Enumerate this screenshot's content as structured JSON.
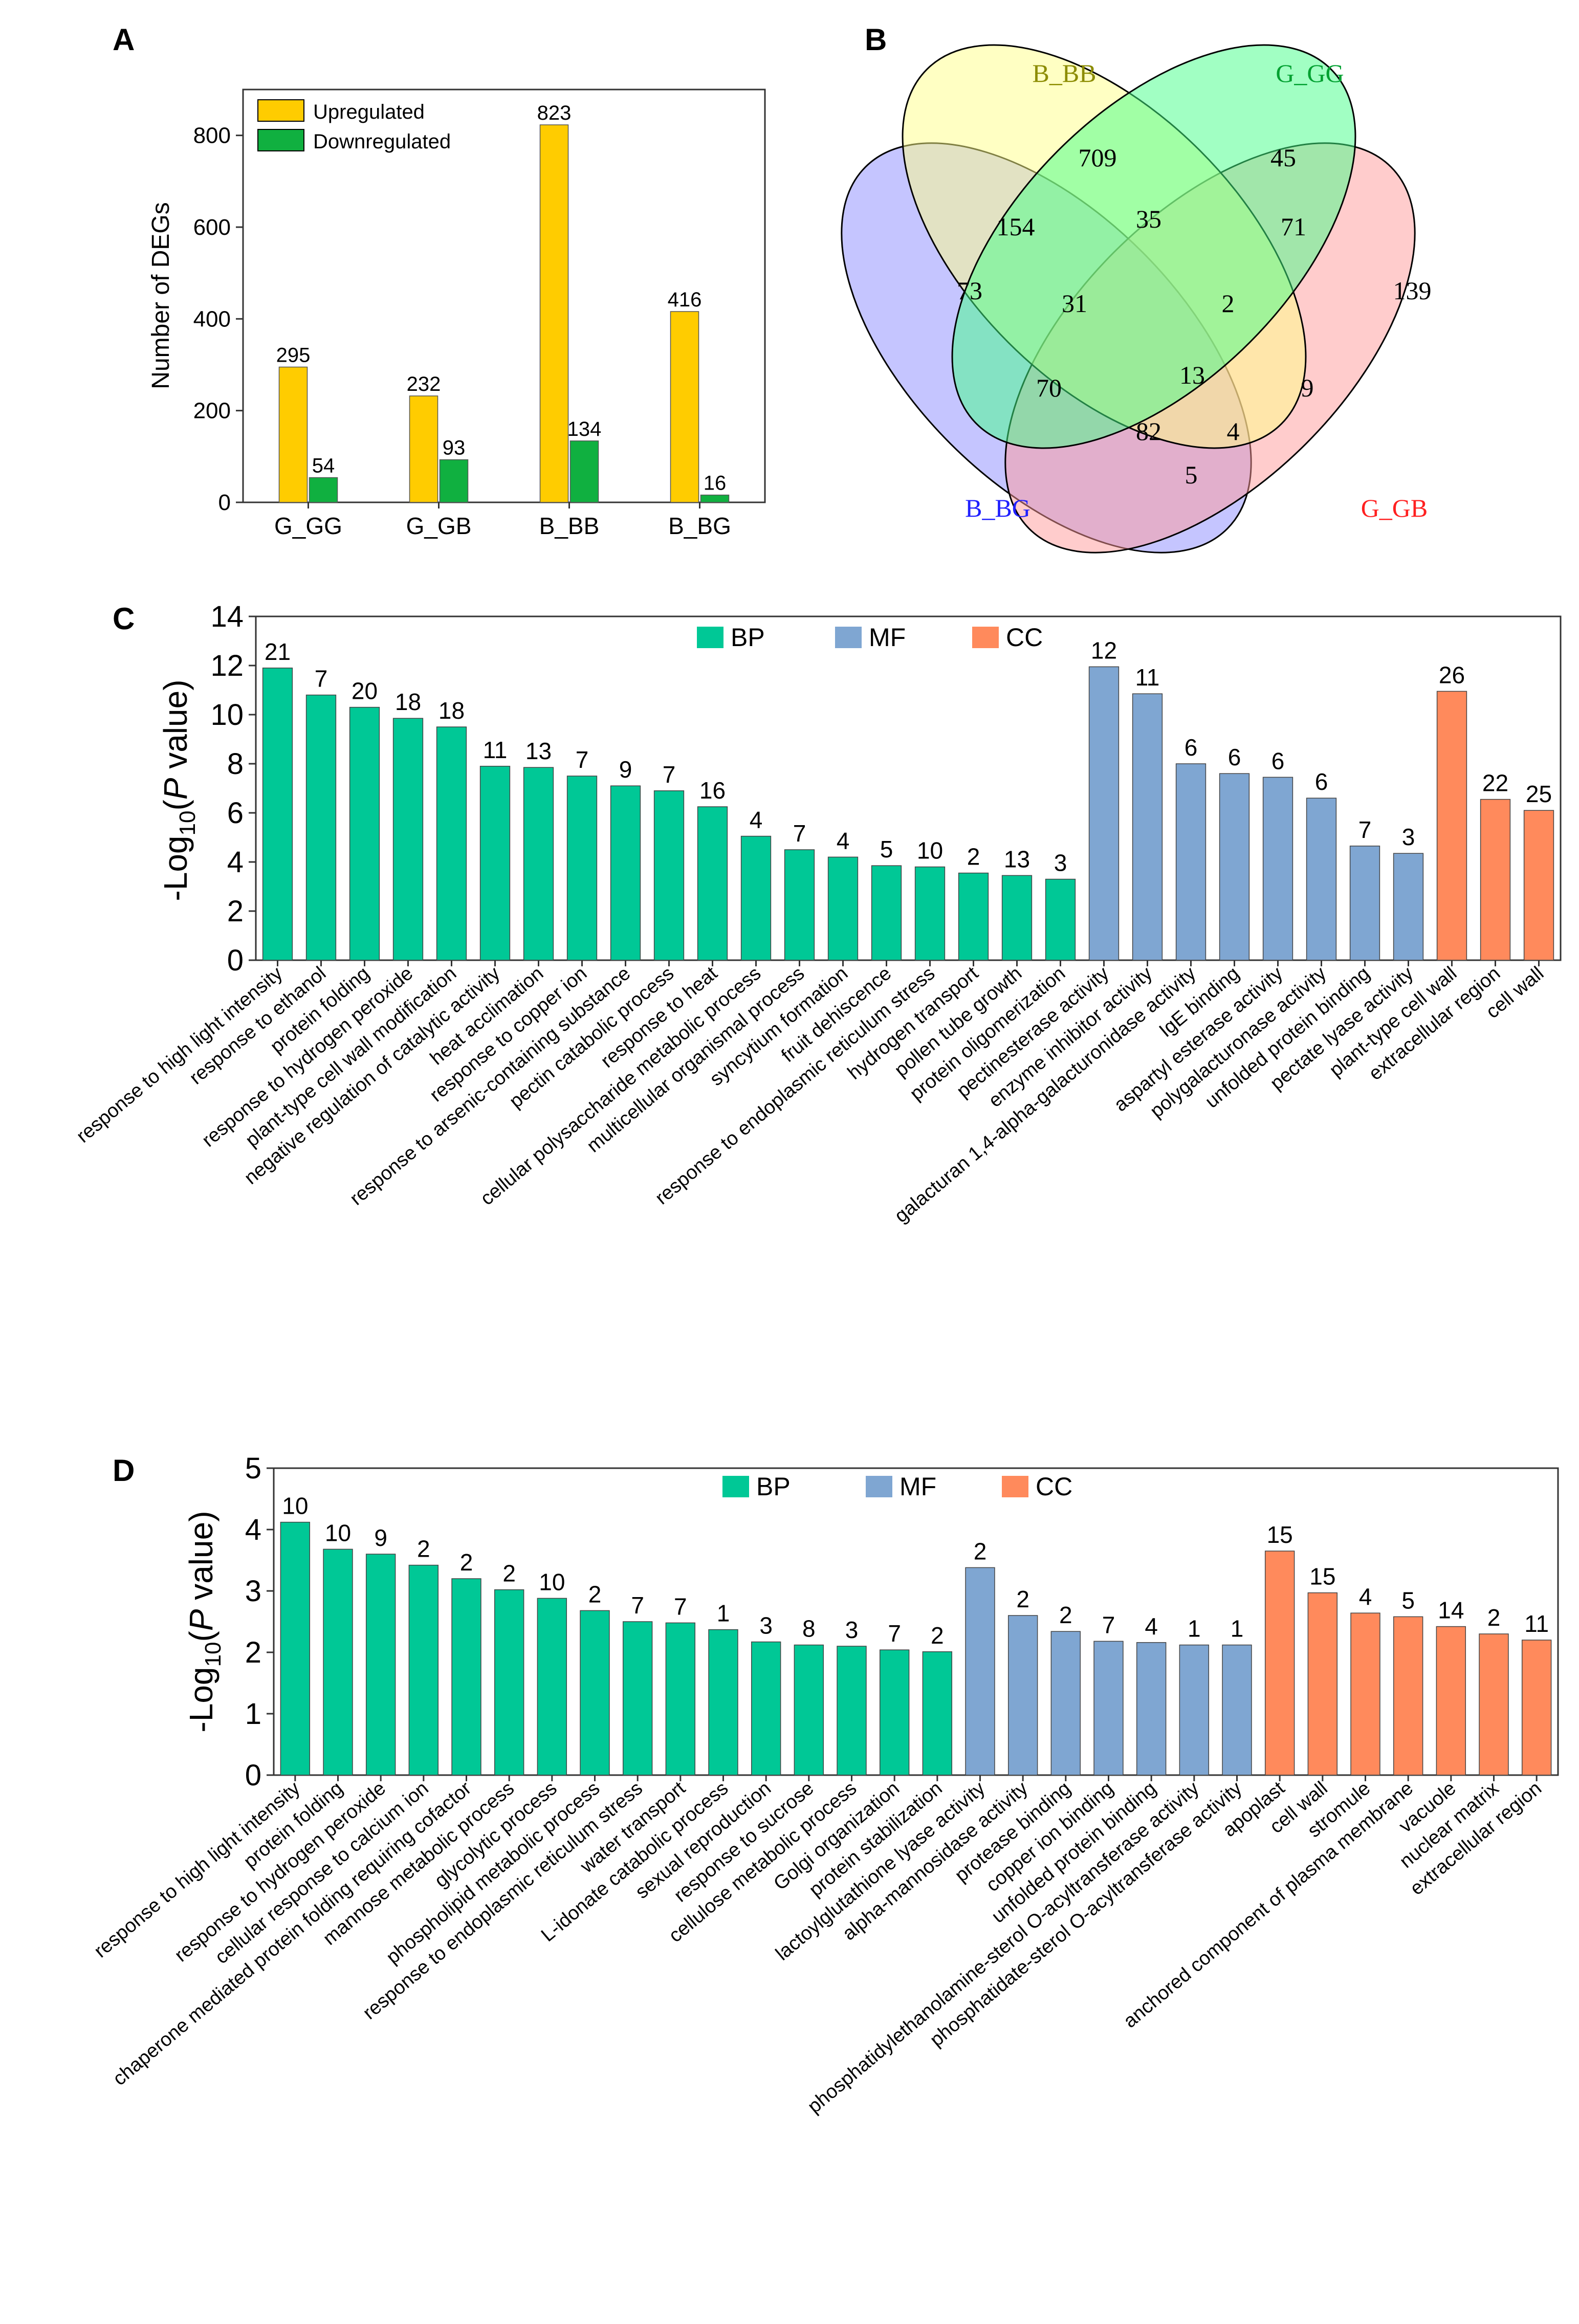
{
  "colors": {
    "up": "#FFCC00",
    "down": "#10B040",
    "bp": "#00C896",
    "mf": "#7FA6D2",
    "cc": "#FF8A5C",
    "venn_bb": "#FFFF88",
    "venn_gg": "#44FF88",
    "venn_gb": "#FF9A9A",
    "venn_bg": "#8C8CFF",
    "venn_bb_label": "#8C8C00",
    "venn_gg_label": "#00A030",
    "venn_gb_label": "#FF2020",
    "venn_bg_label": "#2020FF"
  },
  "chart_data": [
    {
      "panel": "A",
      "type": "bar",
      "categories": [
        "G_GG",
        "G_GB",
        "B_BB",
        "B_BG"
      ],
      "series": [
        {
          "name": "Upregulated",
          "values": [
            295,
            232,
            823,
            416
          ]
        },
        {
          "name": "Downregulated",
          "values": [
            54,
            93,
            134,
            16
          ]
        }
      ],
      "ylabel": "Number of DEGs",
      "ylim": [
        0,
        900
      ],
      "yticks": [
        0,
        200,
        400,
        600,
        800
      ],
      "legend": "top-left"
    },
    {
      "panel": "B",
      "type": "venn",
      "sets": [
        "B_BB",
        "G_GG",
        "B_BG",
        "G_GB"
      ],
      "regions": [
        {
          "sets": [
            "B_BB"
          ],
          "value": 709
        },
        {
          "sets": [
            "G_GG"
          ],
          "value": 45
        },
        {
          "sets": [
            "B_BG"
          ],
          "value": 73
        },
        {
          "sets": [
            "G_GB"
          ],
          "value": 139
        },
        {
          "sets": [
            "B_BB",
            "B_BG"
          ],
          "value": 154
        },
        {
          "sets": [
            "B_BB",
            "G_GG"
          ],
          "value": 35
        },
        {
          "sets": [
            "G_GG",
            "G_GB"
          ],
          "value": 71
        },
        {
          "sets": [
            "B_BB",
            "G_GG",
            "B_BG"
          ],
          "value": 31
        },
        {
          "sets": [
            "B_BB",
            "G_GG",
            "G_GB"
          ],
          "value": 2
        },
        {
          "sets": [
            "G_GG",
            "B_BG"
          ],
          "value": 70
        },
        {
          "sets": [
            "B_BB",
            "G_GB"
          ],
          "value": 9
        },
        {
          "sets": [
            "B_BB",
            "G_GG",
            "B_BG",
            "G_GB"
          ],
          "value": 13
        },
        {
          "sets": [
            "G_GG",
            "B_BG",
            "G_GB"
          ],
          "value": 82
        },
        {
          "sets": [
            "B_BB",
            "B_BG",
            "G_GB"
          ],
          "value": 4
        },
        {
          "sets": [
            "B_BG",
            "G_GB"
          ],
          "value": 5
        }
      ]
    },
    {
      "panel": "C",
      "type": "bar",
      "ylabel_parts": [
        "-Log",
        "10",
        "(",
        "P",
        " value)"
      ],
      "ylim": [
        0,
        14
      ],
      "yticks": [
        0,
        2,
        4,
        6,
        8,
        10,
        12,
        14
      ],
      "legend": [
        "BP",
        "MF",
        "CC"
      ],
      "bars": [
        {
          "label": "response to high light intensity",
          "value": 11.9,
          "count": "21",
          "group": "BP"
        },
        {
          "label": "response to ethanol",
          "value": 10.8,
          "count": "7",
          "group": "BP"
        },
        {
          "label": "protein folding",
          "value": 10.3,
          "count": "20",
          "group": "BP"
        },
        {
          "label": "response to hydrogen peroxide",
          "value": 9.85,
          "count": "18",
          "group": "BP"
        },
        {
          "label": "plant-type cell wall modification",
          "value": 9.5,
          "count": "18",
          "group": "BP"
        },
        {
          "label": "negative regulation of catalytic activity",
          "value": 7.9,
          "count": "11",
          "group": "BP"
        },
        {
          "label": "heat acclimation",
          "value": 7.85,
          "count": "13",
          "group": "BP"
        },
        {
          "label": "response to copper ion",
          "value": 7.5,
          "count": "7",
          "group": "BP"
        },
        {
          "label": "response to arsenic-containing substance",
          "value": 7.1,
          "count": "9",
          "group": "BP"
        },
        {
          "label": "pectin catabolic process",
          "value": 6.9,
          "count": "7",
          "group": "BP"
        },
        {
          "label": "response to heat",
          "value": 6.25,
          "count": "16",
          "group": "BP"
        },
        {
          "label": "cellular polysaccharide metabolic process",
          "value": 5.05,
          "count": "4",
          "group": "BP"
        },
        {
          "label": "multicellular organismal process",
          "value": 4.5,
          "count": "7",
          "group": "BP"
        },
        {
          "label": "syncytium formation",
          "value": 4.2,
          "count": "4",
          "group": "BP"
        },
        {
          "label": "fruit dehiscence",
          "value": 3.85,
          "count": "5",
          "group": "BP"
        },
        {
          "label": "response to endoplasmic reticulum stress",
          "value": 3.8,
          "count": "10",
          "group": "BP"
        },
        {
          "label": "hydrogen transport",
          "value": 3.55,
          "count": "2",
          "group": "BP"
        },
        {
          "label": "pollen tube growth",
          "value": 3.45,
          "count": "13",
          "group": "BP"
        },
        {
          "label": "protein oligomerization",
          "value": 3.3,
          "count": "3",
          "group": "BP"
        },
        {
          "label": "pectinesterase activity",
          "value": 11.95,
          "count": "12",
          "group": "MF"
        },
        {
          "label": "enzyme inhibitor activity",
          "value": 10.85,
          "count": "11",
          "group": "MF"
        },
        {
          "label": "galacturan 1,4-alpha-galacturonidase activity",
          "value": 8.0,
          "count": "6",
          "group": "MF"
        },
        {
          "label": "IgE binding",
          "value": 7.6,
          "count": "6",
          "group": "MF"
        },
        {
          "label": "aspartyl esterase activity",
          "value": 7.45,
          "count": "6",
          "group": "MF"
        },
        {
          "label": "polygalacturonase activity",
          "value": 6.6,
          "count": "6",
          "group": "MF"
        },
        {
          "label": "unfolded protein binding",
          "value": 4.65,
          "count": "7",
          "group": "MF"
        },
        {
          "label": "pectate lyase activity",
          "value": 4.35,
          "count": "3",
          "group": "MF"
        },
        {
          "label": "plant-type cell wall",
          "value": 10.95,
          "count": "26",
          "group": "CC"
        },
        {
          "label": "extracellular region",
          "value": 6.55,
          "count": "22",
          "group": "CC"
        },
        {
          "label": "cell wall",
          "value": 6.1,
          "count": "25",
          "group": "CC"
        }
      ]
    },
    {
      "panel": "D",
      "type": "bar",
      "ylabel_parts": [
        "-Log",
        "10",
        "(",
        "P",
        " value)"
      ],
      "ylim": [
        0,
        5
      ],
      "yticks": [
        0,
        1,
        2,
        3,
        4,
        5
      ],
      "legend": [
        "BP",
        "MF",
        "CC"
      ],
      "bars": [
        {
          "label": "response to high light intensity",
          "value": 4.12,
          "count": "10",
          "group": "BP"
        },
        {
          "label": "protein folding",
          "value": 3.68,
          "count": "10",
          "group": "BP"
        },
        {
          "label": "response to hydrogen peroxide",
          "value": 3.6,
          "count": "9",
          "group": "BP"
        },
        {
          "label": "cellular response to calcium ion",
          "value": 3.42,
          "count": "2",
          "group": "BP"
        },
        {
          "label": "chaperone mediated protein folding requiring cofactor",
          "value": 3.2,
          "count": "2",
          "group": "BP"
        },
        {
          "label": "mannose metabolic process",
          "value": 3.02,
          "count": "2",
          "group": "BP"
        },
        {
          "label": "glycolytic process",
          "value": 2.88,
          "count": "10",
          "group": "BP"
        },
        {
          "label": "phospholipid metabolic process",
          "value": 2.68,
          "count": "2",
          "group": "BP"
        },
        {
          "label": "response to endoplasmic reticulum stress",
          "value": 2.5,
          "count": "7",
          "group": "BP"
        },
        {
          "label": "water transport",
          "value": 2.48,
          "count": "7",
          "group": "BP"
        },
        {
          "label": "L-idonate catabolic process",
          "value": 2.37,
          "count": "1",
          "group": "BP"
        },
        {
          "label": "sexual reproduction",
          "value": 2.17,
          "count": "3",
          "group": "BP"
        },
        {
          "label": "response to sucrose",
          "value": 2.12,
          "count": "8",
          "group": "BP"
        },
        {
          "label": "cellulose metabolic process",
          "value": 2.1,
          "count": "3",
          "group": "BP"
        },
        {
          "label": "Golgi organization",
          "value": 2.04,
          "count": "7",
          "group": "BP"
        },
        {
          "label": "protein stabilization",
          "value": 2.01,
          "count": "2",
          "group": "BP"
        },
        {
          "label": "lactoylglutathione lyase activity",
          "value": 3.38,
          "count": "2",
          "group": "MF"
        },
        {
          "label": "alpha-mannosidase activity",
          "value": 2.6,
          "count": "2",
          "group": "MF"
        },
        {
          "label": "protease binding",
          "value": 2.34,
          "count": "2",
          "group": "MF"
        },
        {
          "label": "copper ion binding",
          "value": 2.18,
          "count": "7",
          "group": "MF"
        },
        {
          "label": "unfolded protein binding",
          "value": 2.16,
          "count": "4",
          "group": "MF"
        },
        {
          "label": "phosphatidylethanolamine-sterol O-acyltransferase activity",
          "value": 2.12,
          "count": "1",
          "group": "MF"
        },
        {
          "label": "phosphatidate-sterol O-acyltransferase activity",
          "value": 2.12,
          "count": "1",
          "group": "MF"
        },
        {
          "label": "apoplast",
          "value": 3.65,
          "count": "15",
          "group": "CC"
        },
        {
          "label": "cell wall",
          "value": 2.97,
          "count": "15",
          "group": "CC"
        },
        {
          "label": "stromule",
          "value": 2.64,
          "count": "4",
          "group": "CC"
        },
        {
          "label": "anchored component of plasma membrane",
          "value": 2.58,
          "count": "5",
          "group": "CC"
        },
        {
          "label": "vacuole",
          "value": 2.42,
          "count": "14",
          "group": "CC"
        },
        {
          "label": "nuclear matrix",
          "value": 2.3,
          "count": "2",
          "group": "CC"
        },
        {
          "label": "extracellular region",
          "value": 2.2,
          "count": "11",
          "group": "CC"
        }
      ]
    }
  ],
  "panel_labels": {
    "a": "A",
    "b": "B",
    "c": "C",
    "d": "D"
  }
}
